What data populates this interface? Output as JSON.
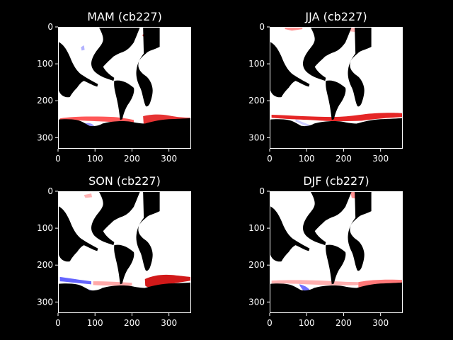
{
  "figure": {
    "background": "#000000",
    "text_color": "#ffffff"
  },
  "chart_data": [
    {
      "type": "heatmap",
      "title": "MAM (cb227)",
      "xlim": [
        0,
        360
      ],
      "ylim": [
        330,
        0
      ],
      "xticks": [
        "0",
        "100",
        "200",
        "300"
      ],
      "yticks": [
        "0",
        "100",
        "200",
        "300"
      ],
      "colormap": "bwr",
      "land_color": "#000000",
      "ocean_color": "#ffffff"
    },
    {
      "type": "heatmap",
      "title": "JJA (cb227)",
      "xlim": [
        0,
        360
      ],
      "ylim": [
        330,
        0
      ],
      "xticks": [
        "0",
        "100",
        "200",
        "300"
      ],
      "yticks": [
        "0",
        "100",
        "200",
        "300"
      ],
      "colormap": "bwr",
      "land_color": "#000000",
      "ocean_color": "#ffffff"
    },
    {
      "type": "heatmap",
      "title": "SON (cb227)",
      "xlim": [
        0,
        360
      ],
      "ylim": [
        330,
        0
      ],
      "xticks": [
        "0",
        "100",
        "200",
        "300"
      ],
      "yticks": [
        "0",
        "100",
        "200",
        "300"
      ],
      "colormap": "bwr",
      "land_color": "#000000",
      "ocean_color": "#ffffff"
    },
    {
      "type": "heatmap",
      "title": "DJF (cb227)",
      "xlim": [
        0,
        360
      ],
      "ylim": [
        330,
        0
      ],
      "xticks": [
        "0",
        "100",
        "200",
        "300"
      ],
      "yticks": [
        "0",
        "100",
        "200",
        "300"
      ],
      "colormap": "bwr",
      "land_color": "#000000",
      "ocean_color": "#ffffff"
    }
  ]
}
